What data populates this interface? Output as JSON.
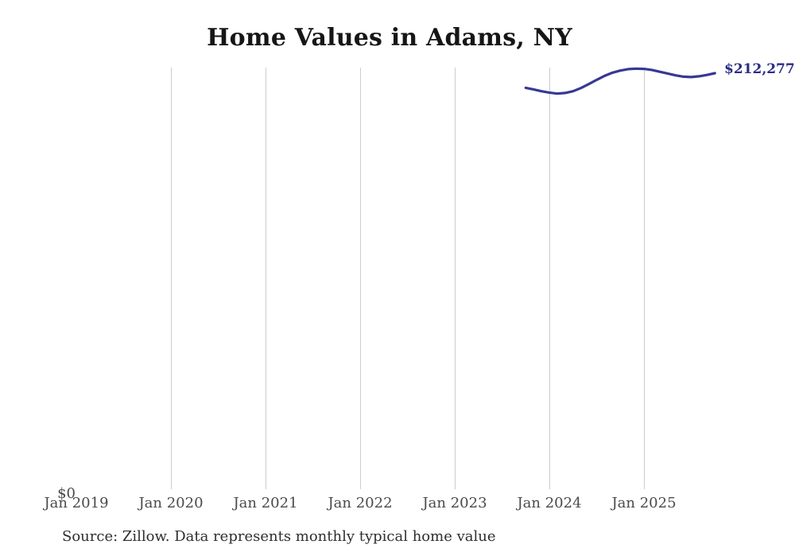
{
  "title": "Home Values in Adams, NY",
  "x_axis": {
    "ticks": [
      "Jan 2019",
      "Jan 2020",
      "Jan 2021",
      "Jan 2022",
      "Jan 2023",
      "Jan 2024",
      "Jan 2025"
    ]
  },
  "y_axis": {
    "zero_label": "$0"
  },
  "series_end_label": "$212,277",
  "source_note": "Source: Zillow. Data represents monthly typical home value",
  "colors": {
    "line": "#383894",
    "end_label": "#2b2b85",
    "gridline": "#cccccc",
    "tick_text": "#4a4a4a",
    "source_text": "#2e2e2e",
    "title_text": "#161616"
  },
  "chart_data": {
    "type": "line",
    "title": "Home Values in Adams, NY",
    "series_name": "Monthly typical home value",
    "x": [
      "2023-10",
      "2023-11",
      "2023-12",
      "2024-01",
      "2024-02",
      "2024-03",
      "2024-04",
      "2024-05",
      "2024-06",
      "2024-07",
      "2024-08",
      "2024-09",
      "2024-10",
      "2024-11",
      "2024-12",
      "2025-01",
      "2025-02",
      "2025-03",
      "2025-04",
      "2025-05",
      "2025-06",
      "2025-07",
      "2025-08",
      "2025-09",
      "2025-10"
    ],
    "values": [
      204900,
      204100,
      203200,
      202500,
      202000,
      202300,
      203200,
      204800,
      206800,
      208900,
      210900,
      212500,
      213600,
      214300,
      214550,
      214450,
      213900,
      213000,
      212100,
      211200,
      210500,
      210300,
      210700,
      211400,
      212277
    ],
    "end_label": "$212,277",
    "x_ticks": [
      "Jan 2019",
      "Jan 2020",
      "Jan 2021",
      "Jan 2022",
      "Jan 2023",
      "Jan 2024",
      "Jan 2025"
    ],
    "x_range": [
      "2019-01",
      "2025-10"
    ],
    "ylim": [
      0,
      215000
    ],
    "grid": "vertical-only",
    "legend": "none",
    "annotations": [
      "$0 baseline label at bottom left",
      "last value labeled at line end, clipped by right edge"
    ]
  }
}
